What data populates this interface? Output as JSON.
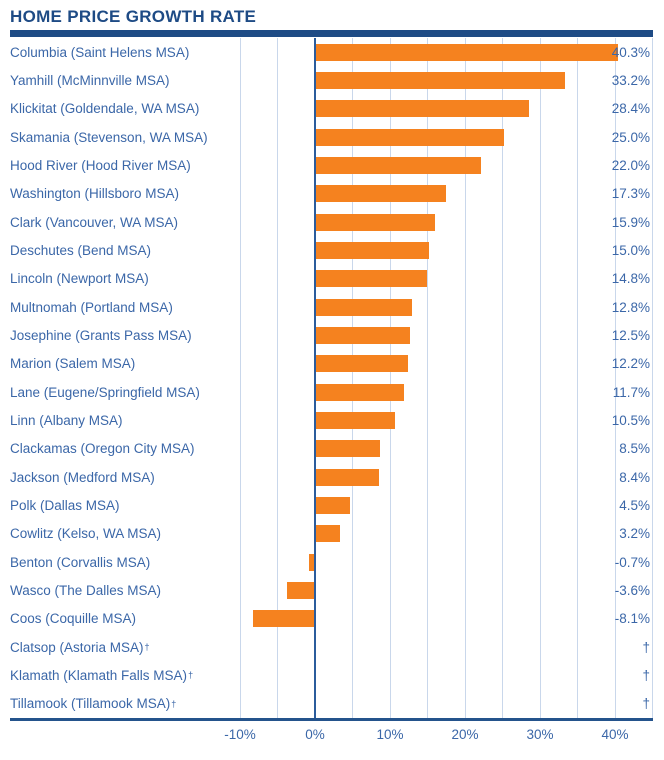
{
  "title": "HOME PRICE GROWTH RATE",
  "colors": {
    "navy": "#1E4B85",
    "label_blue": "#3B67A8",
    "bar_orange": "#F5821F",
    "gridline": "#C9D7EB",
    "zero_line": "#2B5C9C"
  },
  "footnote_symbol": "†",
  "chart_data": {
    "type": "bar",
    "orientation": "horizontal",
    "title": "HOME PRICE GROWTH RATE",
    "xlabel": "",
    "ylabel": "",
    "xlim": [
      -15,
      45
    ],
    "grid": "vertical, every 5%",
    "legend": "none",
    "x_ticks": [
      -10,
      0,
      10,
      20,
      30,
      40
    ],
    "x_tick_labels": [
      "-10%",
      "0%",
      "10%",
      "20%",
      "30%",
      "40%"
    ],
    "gridlines_pct": [
      -10,
      -5,
      5,
      10,
      15,
      20,
      25,
      30,
      35,
      40,
      45
    ],
    "rows": [
      {
        "label": "Columbia (Saint Helens MSA)",
        "dagger": false,
        "value": 40.3,
        "value_label": "40.3%"
      },
      {
        "label": "Yamhill (McMinnville MSA)",
        "dagger": false,
        "value": 33.2,
        "value_label": "33.2%"
      },
      {
        "label": "Klickitat (Goldendale, WA MSA)",
        "dagger": false,
        "value": 28.4,
        "value_label": "28.4%"
      },
      {
        "label": "Skamania (Stevenson, WA MSA)",
        "dagger": false,
        "value": 25.0,
        "value_label": "25.0%"
      },
      {
        "label": "Hood River (Hood River MSA)",
        "dagger": false,
        "value": 22.0,
        "value_label": "22.0%"
      },
      {
        "label": "Washington (Hillsboro MSA)",
        "dagger": false,
        "value": 17.3,
        "value_label": "17.3%"
      },
      {
        "label": "Clark (Vancouver, WA MSA)",
        "dagger": false,
        "value": 15.9,
        "value_label": "15.9%"
      },
      {
        "label": "Deschutes (Bend MSA)",
        "dagger": false,
        "value": 15.0,
        "value_label": "15.0%"
      },
      {
        "label": "Lincoln (Newport MSA)",
        "dagger": false,
        "value": 14.8,
        "value_label": "14.8%"
      },
      {
        "label": "Multnomah (Portland MSA)",
        "dagger": false,
        "value": 12.8,
        "value_label": "12.8%"
      },
      {
        "label": "Josephine (Grants Pass MSA)",
        "dagger": false,
        "value": 12.5,
        "value_label": "12.5%"
      },
      {
        "label": "Marion (Salem MSA)",
        "dagger": false,
        "value": 12.2,
        "value_label": "12.2%"
      },
      {
        "label": "Lane (Eugene/Springfield MSA)",
        "dagger": false,
        "value": 11.7,
        "value_label": "11.7%"
      },
      {
        "label": "Linn (Albany MSA)",
        "dagger": false,
        "value": 10.5,
        "value_label": "10.5%"
      },
      {
        "label": "Clackamas (Oregon City MSA)",
        "dagger": false,
        "value": 8.5,
        "value_label": "8.5%"
      },
      {
        "label": "Jackson (Medford MSA)",
        "dagger": false,
        "value": 8.4,
        "value_label": "8.4%"
      },
      {
        "label": "Polk (Dallas MSA)",
        "dagger": false,
        "value": 4.5,
        "value_label": "4.5%"
      },
      {
        "label": "Cowlitz (Kelso, WA MSA)",
        "dagger": false,
        "value": 3.2,
        "value_label": "3.2%"
      },
      {
        "label": "Benton (Corvallis MSA)",
        "dagger": false,
        "value": -0.7,
        "value_label": "-0.7%"
      },
      {
        "label": "Wasco (The Dalles MSA)",
        "dagger": false,
        "value": -3.6,
        "value_label": "-3.6%"
      },
      {
        "label": "Coos (Coquille MSA)",
        "dagger": false,
        "value": -8.1,
        "value_label": "-8.1%"
      },
      {
        "label": "Clatsop (Astoria MSA)",
        "dagger": true,
        "value": null,
        "value_label": "†"
      },
      {
        "label": "Klamath (Klamath Falls MSA)",
        "dagger": true,
        "value": null,
        "value_label": "†"
      },
      {
        "label": "Tillamook (Tillamook MSA)",
        "dagger": true,
        "value": null,
        "value_label": "†"
      }
    ]
  }
}
